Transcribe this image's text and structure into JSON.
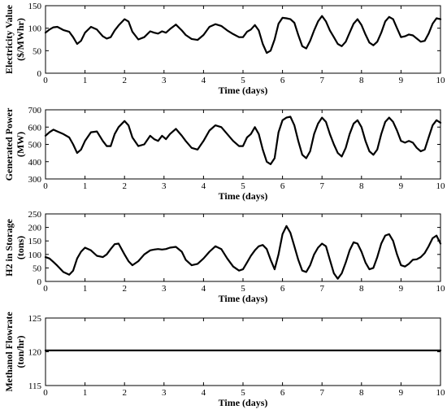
{
  "chart_data": [
    {
      "type": "line",
      "xlabel": "Time (days)",
      "ylabel": [
        "Electricity Value",
        "($/MWhr)"
      ],
      "xlim": [
        0,
        10
      ],
      "ylim": [
        0,
        150
      ],
      "xticks": [
        "0",
        "1",
        "2",
        "3",
        "4",
        "5",
        "6",
        "7",
        "8",
        "9",
        "10"
      ],
      "yticks": [
        "0",
        "50",
        "100",
        "150"
      ],
      "yticks_values": [
        0,
        50,
        100,
        150
      ],
      "series": [
        {
          "x": [
            0,
            0.1,
            0.2,
            0.3,
            0.45,
            0.6,
            0.7,
            0.8,
            0.9,
            1.0,
            1.15,
            1.3,
            1.45,
            1.55,
            1.65,
            1.75,
            1.85,
            2.0,
            2.1,
            2.2,
            2.35,
            2.5,
            2.65,
            2.75,
            2.85,
            2.95,
            3.05,
            3.15,
            3.3,
            3.45,
            3.55,
            3.7,
            3.85,
            4.0,
            4.15,
            4.3,
            4.45,
            4.6,
            4.75,
            4.9,
            5.0,
            5.1,
            5.2,
            5.3,
            5.4,
            5.5,
            5.6,
            5.7,
            5.8,
            5.9,
            6.0,
            6.1,
            6.2,
            6.3,
            6.4,
            6.5,
            6.6,
            6.7,
            6.8,
            6.9,
            7.0,
            7.1,
            7.2,
            7.3,
            7.4,
            7.5,
            7.6,
            7.7,
            7.8,
            7.9,
            8.0,
            8.1,
            8.2,
            8.3,
            8.4,
            8.5,
            8.6,
            8.7,
            8.8,
            8.9,
            9.0,
            9.1,
            9.2,
            9.3,
            9.4,
            9.5,
            9.6,
            9.7,
            9.8,
            9.9,
            10.0
          ],
          "y": [
            90,
            97,
            102,
            103,
            96,
            92,
            80,
            65,
            72,
            90,
            103,
            97,
            82,
            77,
            80,
            95,
            106,
            120,
            115,
            92,
            75,
            80,
            93,
            90,
            88,
            93,
            90,
            98,
            108,
            95,
            85,
            76,
            74,
            85,
            103,
            109,
            105,
            95,
            87,
            80,
            80,
            92,
            97,
            107,
            95,
            65,
            45,
            50,
            75,
            110,
            123,
            122,
            120,
            112,
            85,
            60,
            55,
            72,
            95,
            115,
            127,
            115,
            95,
            80,
            65,
            60,
            70,
            90,
            110,
            120,
            107,
            86,
            68,
            62,
            70,
            90,
            115,
            125,
            120,
            100,
            80,
            82,
            86,
            84,
            77,
            70,
            72,
            88,
            110,
            122,
            120
          ]
        }
      ]
    },
    {
      "type": "line",
      "xlabel": "Time (days)",
      "ylabel": [
        "Generated Power",
        "(MW)"
      ],
      "xlim": [
        0,
        10
      ],
      "ylim": [
        300,
        700
      ],
      "xticks": [
        "0",
        "1",
        "2",
        "3",
        "4",
        "5",
        "6",
        "7",
        "8",
        "9",
        "10"
      ],
      "yticks": [
        "300",
        "400",
        "500",
        "600",
        "700"
      ],
      "yticks_values": [
        300,
        400,
        500,
        600,
        700
      ],
      "series": [
        {
          "x": [
            0,
            0.1,
            0.2,
            0.3,
            0.45,
            0.6,
            0.7,
            0.8,
            0.9,
            1.0,
            1.15,
            1.3,
            1.45,
            1.55,
            1.65,
            1.75,
            1.85,
            2.0,
            2.1,
            2.2,
            2.35,
            2.5,
            2.65,
            2.75,
            2.85,
            2.95,
            3.05,
            3.15,
            3.3,
            3.45,
            3.55,
            3.7,
            3.85,
            4.0,
            4.15,
            4.3,
            4.45,
            4.6,
            4.75,
            4.9,
            5.0,
            5.1,
            5.2,
            5.3,
            5.4,
            5.5,
            5.6,
            5.7,
            5.8,
            5.9,
            6.0,
            6.1,
            6.2,
            6.3,
            6.4,
            6.5,
            6.6,
            6.7,
            6.8,
            6.9,
            7.0,
            7.1,
            7.2,
            7.3,
            7.4,
            7.5,
            7.6,
            7.7,
            7.8,
            7.9,
            8.0,
            8.1,
            8.2,
            8.3,
            8.4,
            8.5,
            8.6,
            8.7,
            8.8,
            8.9,
            9.0,
            9.1,
            9.2,
            9.3,
            9.4,
            9.5,
            9.6,
            9.7,
            9.8,
            9.9,
            10.0
          ],
          "y": [
            550,
            570,
            585,
            575,
            560,
            540,
            500,
            450,
            470,
            520,
            570,
            575,
            520,
            490,
            490,
            560,
            600,
            635,
            610,
            540,
            490,
            500,
            550,
            530,
            520,
            550,
            530,
            560,
            590,
            550,
            520,
            480,
            470,
            520,
            580,
            610,
            600,
            560,
            520,
            490,
            490,
            540,
            560,
            600,
            560,
            470,
            400,
            385,
            420,
            570,
            640,
            655,
            660,
            610,
            520,
            440,
            420,
            460,
            560,
            620,
            655,
            630,
            560,
            500,
            450,
            430,
            480,
            560,
            620,
            640,
            600,
            520,
            460,
            440,
            470,
            560,
            630,
            655,
            630,
            580,
            520,
            510,
            520,
            510,
            480,
            460,
            470,
            540,
            610,
            640,
            625
          ]
        }
      ]
    },
    {
      "type": "line",
      "xlabel": "Time (days)",
      "ylabel": [
        "H2 in Storage",
        "(tons)"
      ],
      "xlim": [
        0,
        10
      ],
      "ylim": [
        0,
        250
      ],
      "xticks": [
        "0",
        "1",
        "2",
        "3",
        "4",
        "5",
        "6",
        "7",
        "8",
        "9",
        "10"
      ],
      "yticks": [
        "0",
        "50",
        "100",
        "150",
        "200",
        "250"
      ],
      "yticks_values": [
        0,
        50,
        100,
        150,
        200,
        250
      ],
      "series": [
        {
          "x": [
            0,
            0.1,
            0.2,
            0.3,
            0.45,
            0.6,
            0.7,
            0.8,
            0.9,
            1.0,
            1.15,
            1.3,
            1.45,
            1.55,
            1.65,
            1.75,
            1.85,
            2.0,
            2.1,
            2.2,
            2.35,
            2.5,
            2.65,
            2.75,
            2.85,
            2.95,
            3.05,
            3.15,
            3.3,
            3.45,
            3.55,
            3.7,
            3.85,
            4.0,
            4.15,
            4.3,
            4.45,
            4.6,
            4.75,
            4.9,
            5.0,
            5.1,
            5.2,
            5.3,
            5.4,
            5.5,
            5.6,
            5.7,
            5.8,
            5.9,
            6.0,
            6.1,
            6.2,
            6.3,
            6.4,
            6.5,
            6.6,
            6.7,
            6.8,
            6.9,
            7.0,
            7.1,
            7.2,
            7.3,
            7.4,
            7.5,
            7.6,
            7.7,
            7.8,
            7.9,
            8.0,
            8.1,
            8.2,
            8.3,
            8.4,
            8.5,
            8.6,
            8.7,
            8.8,
            8.9,
            9.0,
            9.1,
            9.2,
            9.3,
            9.4,
            9.5,
            9.6,
            9.7,
            9.8,
            9.9,
            10.0
          ],
          "y": [
            90,
            85,
            72,
            58,
            35,
            25,
            40,
            85,
            110,
            125,
            115,
            95,
            90,
            100,
            120,
            138,
            140,
            100,
            75,
            60,
            75,
            100,
            115,
            118,
            120,
            118,
            120,
            125,
            128,
            110,
            80,
            60,
            65,
            85,
            110,
            130,
            120,
            85,
            55,
            40,
            45,
            70,
            95,
            115,
            130,
            135,
            120,
            80,
            45,
            100,
            175,
            205,
            180,
            130,
            80,
            40,
            35,
            60,
            100,
            125,
            140,
            130,
            80,
            30,
            10,
            30,
            70,
            115,
            145,
            140,
            110,
            70,
            45,
            50,
            90,
            140,
            170,
            175,
            150,
            100,
            60,
            55,
            65,
            80,
            82,
            90,
            105,
            130,
            160,
            170,
            140
          ]
        }
      ]
    },
    {
      "type": "line",
      "xlabel": "Time (days)",
      "ylabel": [
        "Methanol Flowrate",
        "(ton/hr)"
      ],
      "xlim": [
        0,
        10
      ],
      "ylim": [
        115,
        125
      ],
      "xticks": [
        "0",
        "1",
        "2",
        "3",
        "4",
        "5",
        "6",
        "7",
        "8",
        "9",
        "10"
      ],
      "yticks": [
        "115",
        "120",
        "125"
      ],
      "yticks_values": [
        115,
        120,
        125
      ],
      "series": [
        {
          "x": [
            0,
            10
          ],
          "y": [
            120.2,
            120.2
          ]
        }
      ]
    }
  ]
}
